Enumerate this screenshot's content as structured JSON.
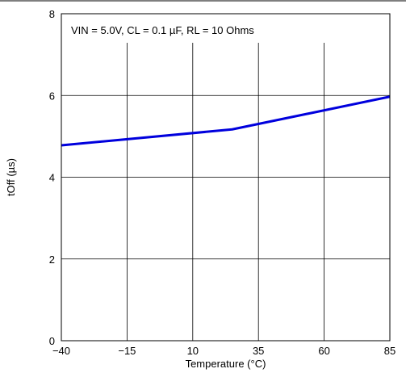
{
  "chart_data": {
    "type": "line",
    "title": "",
    "annotation": "VIN = 5.0V, CL = 0.1 µF, RL = 10 Ohms",
    "xlabel": "Temperature (°C)",
    "ylabel": "tOff (µs)",
    "xlim": [
      -40,
      85
    ],
    "ylim": [
      0,
      8
    ],
    "x_ticks": [
      -40,
      -15,
      10,
      35,
      60,
      85
    ],
    "x_tick_labels": [
      "−40",
      "−15",
      "10",
      "35",
      "60",
      "85"
    ],
    "y_ticks": [
      0,
      2,
      4,
      6,
      8
    ],
    "y_tick_labels": [
      "0",
      "2",
      "4",
      "6",
      "8"
    ],
    "grid": true,
    "series": [
      {
        "color": "#0000dd",
        "x": [
          -40,
          25,
          85
        ],
        "y": [
          4.78,
          5.17,
          5.97
        ]
      }
    ]
  }
}
